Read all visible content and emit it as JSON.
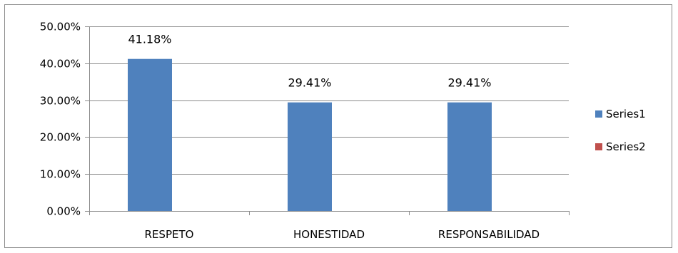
{
  "chart_data": {
    "type": "bar",
    "title": "",
    "categories": [
      "RESPETO",
      "HONESTIDAD",
      "RESPONSABILIDAD"
    ],
    "series": [
      {
        "name": "Series1",
        "values": [
          0.4118,
          0.2941,
          0.2941
        ],
        "color": "#4f81bd"
      },
      {
        "name": "Series2",
        "values": [
          null,
          null,
          null
        ],
        "color": "#c0504d"
      }
    ],
    "data_labels": [
      "41.18%",
      "29.41%",
      "29.41%"
    ],
    "y_ticks": [
      {
        "value": 0.0,
        "label": "0.00%"
      },
      {
        "value": 0.1,
        "label": "10.00%"
      },
      {
        "value": 0.2,
        "label": "20.00%"
      },
      {
        "value": 0.3,
        "label": "30.00%"
      },
      {
        "value": 0.4,
        "label": "40.00%"
      },
      {
        "value": 0.5,
        "label": "50.00%"
      }
    ],
    "ylim": [
      0,
      0.5
    ],
    "xlabel": "",
    "ylabel": "",
    "grid": true,
    "legend_position": "right",
    "colors": {
      "gridline": "#8c8c8c",
      "axis": "#8c8c8c"
    }
  }
}
